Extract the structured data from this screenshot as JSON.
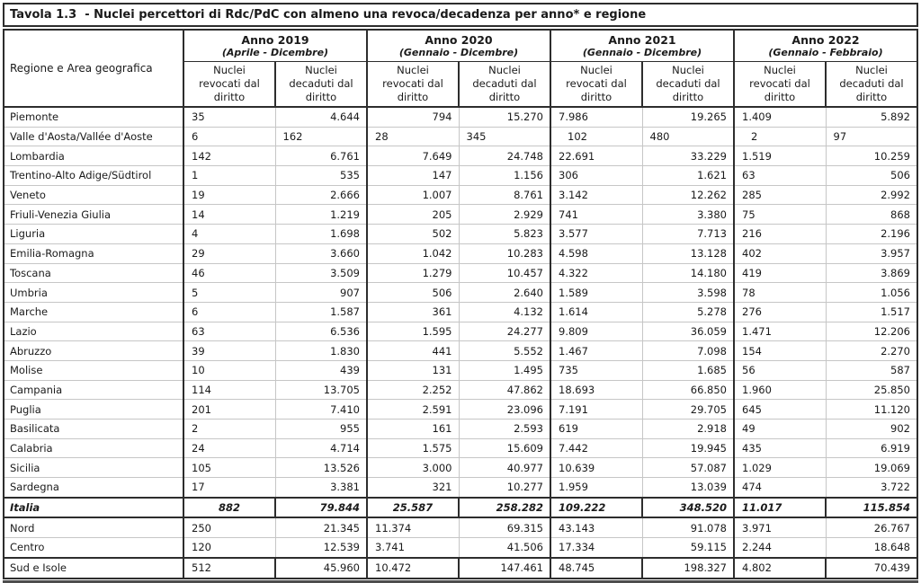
{
  "title": "Tavola 1.3  - Nuclei percettori di Rdc/PdC con almeno una revoca/decadenza per anno* e regione",
  "colors": {
    "border_dark": "#2d2d2d",
    "border_light": "#c6c6c6",
    "bottom_band": "#4d4d4d",
    "text": "#1a1a1a",
    "background": "#ffffff"
  },
  "table": {
    "row_header_label": "Regione e Area geografica",
    "revocati_label": "Nuclei revocati dal diritto",
    "decaduti_label": "Nuclei decaduti dal diritto",
    "year_groups": [
      {
        "label": "Anno 2019",
        "period": "(Aprile - Dicembre)"
      },
      {
        "label": "Anno 2020",
        "period": "(Gennaio - Dicembre)"
      },
      {
        "label": "Anno 2021",
        "period": "(Gennaio - Dicembre)"
      },
      {
        "label": "Anno 2022",
        "period": "(Gennaio - Febbraio)"
      }
    ],
    "rows": [
      {
        "region": "Piemonte",
        "type": "region",
        "values": [
          "35",
          "4.644",
          "794",
          "15.270",
          "7.986",
          "19.265",
          "1.409",
          "5.892"
        ]
      },
      {
        "region": "Valle d'Aosta/Vallée d'Aoste",
        "type": "region",
        "values": [
          "6",
          "162",
          "28",
          "345",
          "102",
          "480",
          "2",
          "97"
        ]
      },
      {
        "region": "Lombardia",
        "type": "region",
        "values": [
          "142",
          "6.761",
          "7.649",
          "24.748",
          "22.691",
          "33.229",
          "1.519",
          "10.259"
        ]
      },
      {
        "region": "Trentino-Alto Adige/Südtirol",
        "type": "region",
        "values": [
          "1",
          "535",
          "147",
          "1.156",
          "306",
          "1.621",
          "63",
          "506"
        ]
      },
      {
        "region": "Veneto",
        "type": "region",
        "values": [
          "19",
          "2.666",
          "1.007",
          "8.761",
          "3.142",
          "12.262",
          "285",
          "2.992"
        ]
      },
      {
        "region": "Friuli-Venezia Giulia",
        "type": "region",
        "values": [
          "14",
          "1.219",
          "205",
          "2.929",
          "741",
          "3.380",
          "75",
          "868"
        ]
      },
      {
        "region": "Liguria",
        "type": "region",
        "values": [
          "4",
          "1.698",
          "502",
          "5.823",
          "3.577",
          "7.713",
          "216",
          "2.196"
        ]
      },
      {
        "region": "Emilia-Romagna",
        "type": "region",
        "values": [
          "29",
          "3.660",
          "1.042",
          "10.283",
          "4.598",
          "13.128",
          "402",
          "3.957"
        ]
      },
      {
        "region": "Toscana",
        "type": "region",
        "values": [
          "46",
          "3.509",
          "1.279",
          "10.457",
          "4.322",
          "14.180",
          "419",
          "3.869"
        ]
      },
      {
        "region": "Umbria",
        "type": "region",
        "values": [
          "5",
          "907",
          "506",
          "2.640",
          "1.589",
          "3.598",
          "78",
          "1.056"
        ]
      },
      {
        "region": "Marche",
        "type": "region",
        "values": [
          "6",
          "1.587",
          "361",
          "4.132",
          "1.614",
          "5.278",
          "276",
          "1.517"
        ]
      },
      {
        "region": "Lazio",
        "type": "region",
        "values": [
          "63",
          "6.536",
          "1.595",
          "24.277",
          "9.809",
          "36.059",
          "1.471",
          "12.206"
        ]
      },
      {
        "region": "Abruzzo",
        "type": "region",
        "values": [
          "39",
          "1.830",
          "441",
          "5.552",
          "1.467",
          "7.098",
          "154",
          "2.270"
        ]
      },
      {
        "region": "Molise",
        "type": "region",
        "values": [
          "10",
          "439",
          "131",
          "1.495",
          "735",
          "1.685",
          "56",
          "587"
        ]
      },
      {
        "region": "Campania",
        "type": "region",
        "values": [
          "114",
          "13.705",
          "2.252",
          "47.862",
          "18.693",
          "66.850",
          "1.960",
          "25.850"
        ]
      },
      {
        "region": "Puglia",
        "type": "region",
        "values": [
          "201",
          "7.410",
          "2.591",
          "23.096",
          "7.191",
          "29.705",
          "645",
          "11.120"
        ]
      },
      {
        "region": "Basilicata",
        "type": "region",
        "values": [
          "2",
          "955",
          "161",
          "2.593",
          "619",
          "2.918",
          "49",
          "902"
        ]
      },
      {
        "region": "Calabria",
        "type": "region",
        "values": [
          "24",
          "4.714",
          "1.575",
          "15.609",
          "7.442",
          "19.945",
          "435",
          "6.919"
        ]
      },
      {
        "region": "Sicilia",
        "type": "region",
        "values": [
          "105",
          "13.526",
          "3.000",
          "40.977",
          "10.639",
          "57.087",
          "1.029",
          "19.069"
        ]
      },
      {
        "region": "Sardegna",
        "type": "region",
        "values": [
          "17",
          "3.381",
          "321",
          "10.277",
          "1.959",
          "13.039",
          "474",
          "3.722"
        ]
      },
      {
        "region": "Italia",
        "type": "total",
        "values": [
          "882",
          "79.844",
          "25.587",
          "258.282",
          "109.222",
          "348.520",
          "11.017",
          "115.854"
        ]
      },
      {
        "region": "Nord",
        "type": "area",
        "values": [
          "250",
          "21.345",
          "11.374",
          "69.315",
          "43.143",
          "91.078",
          "3.971",
          "26.767"
        ]
      },
      {
        "region": "Centro",
        "type": "area",
        "values": [
          "120",
          "12.539",
          "3.741",
          "41.506",
          "17.334",
          "59.115",
          "2.244",
          "18.648"
        ]
      },
      {
        "region": "Sud e Isole",
        "type": "area-last",
        "values": [
          "512",
          "45.960",
          "10.472",
          "147.461",
          "48.745",
          "198.327",
          "4.802",
          "70.439"
        ]
      }
    ]
  }
}
